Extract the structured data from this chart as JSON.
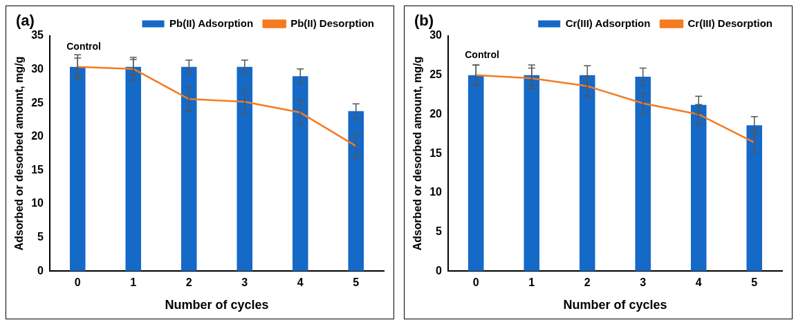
{
  "chart_data": [
    {
      "type": "bar",
      "title": "(a)",
      "xlabel": "Number of cycles",
      "ylabel": "Adsorbed or desorbed amount, mg/g",
      "categories": [
        "0",
        "1",
        "2",
        "3",
        "4",
        "5"
      ],
      "ylim": [
        0,
        35
      ],
      "yticks": [
        0,
        5,
        10,
        15,
        20,
        25,
        30,
        35
      ],
      "grid": false,
      "legend": "top",
      "series": [
        {
          "name": "Pb(II) Adsorption",
          "color": "#1569c7",
          "values": [
            30.4,
            30.4,
            30.4,
            30.4,
            29.0,
            23.8
          ],
          "errors": [
            1.3,
            1.1,
            1.0,
            1.0,
            1.1,
            1.1
          ]
        },
        {
          "name": "Pb(II) Desorption",
          "type": "line",
          "color": "#f47b20",
          "marker": "none",
          "values": [
            30.4,
            30.1,
            25.6,
            25.2,
            23.6,
            18.6
          ],
          "errors": [
            1.8,
            1.7,
            1.8,
            1.8,
            1.8,
            1.8
          ]
        }
      ],
      "annotations": [
        {
          "text": "Control",
          "x": "0",
          "y": 30.4
        }
      ]
    },
    {
      "type": "bar",
      "title": "(b)",
      "xlabel": "Number of cycles",
      "ylabel": "Adsorbed or desorbed amount, mg/g",
      "categories": [
        "0",
        "1",
        "2",
        "3",
        "4",
        "5"
      ],
      "ylim": [
        0,
        30
      ],
      "yticks": [
        0,
        5,
        10,
        15,
        20,
        25,
        30
      ],
      "grid": false,
      "legend": "top",
      "series": [
        {
          "name": "Cr(III) Adsorption",
          "color": "#1569c7",
          "values": [
            25.0,
            25.0,
            25.0,
            24.8,
            21.2,
            18.6
          ],
          "errors": [
            1.3,
            1.3,
            1.2,
            1.1,
            1.1,
            1.1
          ]
        },
        {
          "name": "Cr(III) Desorption",
          "type": "line",
          "color": "#f47b20",
          "marker": "none",
          "values": [
            25.0,
            24.6,
            23.6,
            21.4,
            20.0,
            16.4
          ],
          "errors": [
            1.3,
            1.3,
            1.3,
            1.3,
            1.25,
            1.4
          ]
        }
      ],
      "annotations": [
        {
          "text": "Control",
          "x": "0",
          "y": 25.0
        }
      ]
    }
  ]
}
